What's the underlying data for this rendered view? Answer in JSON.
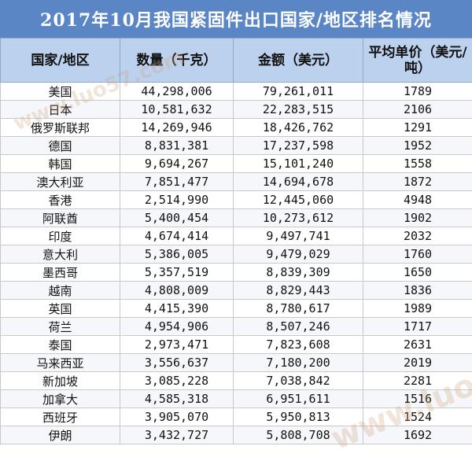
{
  "title": "2017年10月我国紧固件出口国家/地区排名情况",
  "columns": [
    "国家/地区",
    "数量（千克）",
    "金额（美元）",
    "平均单价（美元/吨）"
  ],
  "rows": [
    [
      "美国",
      "44,298,006",
      "79,261,011",
      "1789"
    ],
    [
      "日本",
      "10,581,632",
      "22,283,515",
      "2106"
    ],
    [
      "俄罗斯联邦",
      "14,269,946",
      "18,426,762",
      "1291"
    ],
    [
      "德国",
      "8,831,381",
      "17,237,598",
      "1952"
    ],
    [
      "韩国",
      "9,694,267",
      "15,101,240",
      "1558"
    ],
    [
      "澳大利亚",
      "7,851,477",
      "14,694,678",
      "1872"
    ],
    [
      "香港",
      "2,514,990",
      "12,445,060",
      "4948"
    ],
    [
      "阿联酋",
      "5,400,454",
      "10,273,612",
      "1902"
    ],
    [
      "印度",
      "4,674,414",
      "9,497,741",
      "2032"
    ],
    [
      "意大利",
      "5,386,005",
      "9,479,029",
      "1760"
    ],
    [
      "墨西哥",
      "5,357,519",
      "8,839,309",
      "1650"
    ],
    [
      "越南",
      "4,808,009",
      "8,829,443",
      "1836"
    ],
    [
      "英国",
      "4,415,390",
      "8,780,617",
      "1989"
    ],
    [
      "荷兰",
      "4,954,906",
      "8,507,246",
      "1717"
    ],
    [
      "泰国",
      "2,973,471",
      "7,823,608",
      "2631"
    ],
    [
      "马来西亚",
      "3,556,637",
      "7,180,200",
      "2019"
    ],
    [
      "新加坡",
      "3,085,228",
      "7,038,842",
      "2281"
    ],
    [
      "加拿大",
      "4,585,318",
      "6,951,611",
      "1516"
    ],
    [
      "西班牙",
      "3,905,070",
      "5,950,813",
      "1524"
    ],
    [
      "伊朗",
      "3,432,727",
      "5,808,708",
      "1692"
    ]
  ],
  "watermark": "www.luo57.com",
  "colors": {
    "title_bg": "#5b86c6",
    "header_bg": "#bcd1ee"
  }
}
